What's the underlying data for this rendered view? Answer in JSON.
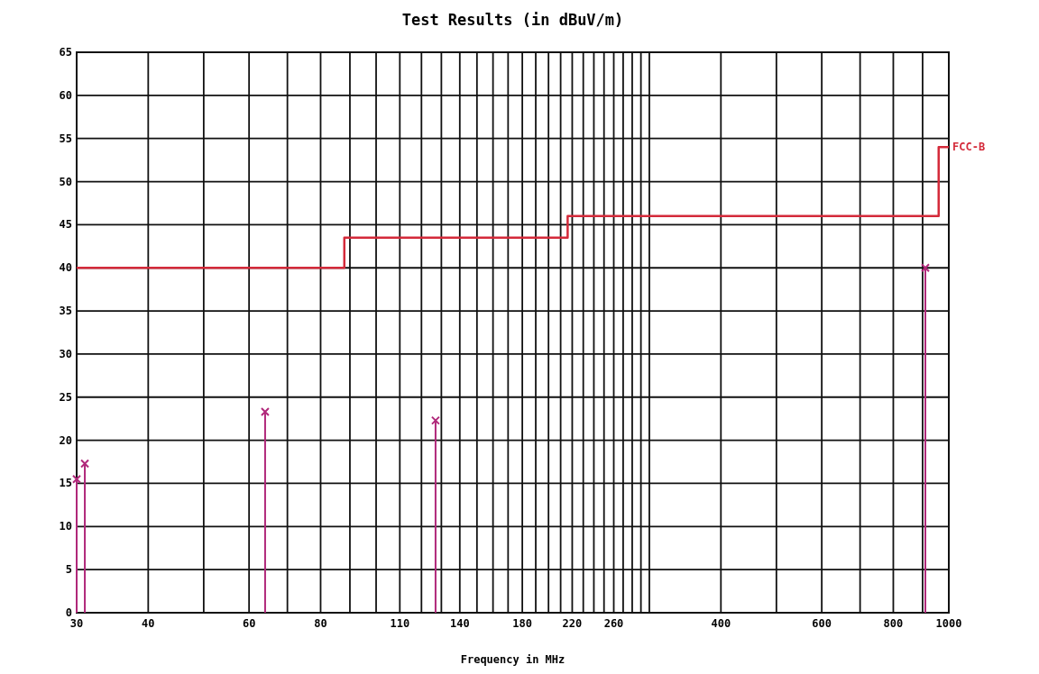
{
  "chart_data": {
    "type": "step",
    "title": "Test Results (in dBuV/m)",
    "xlabel": "Frequency in MHz",
    "log": "x",
    "grid": true,
    "xlim": [
      30,
      1000
    ],
    "ylim": [
      0,
      65
    ],
    "xticks": [
      30,
      40,
      {
        "value": 50,
        "label": null
      },
      60,
      {
        "value": 70,
        "label": null
      },
      80,
      {
        "value": 90,
        "label": null
      },
      {
        "value": 100,
        "label": null
      },
      110,
      {
        "value": 120,
        "label": null
      },
      {
        "value": 130,
        "label": null
      },
      140,
      {
        "value": 150,
        "label": null
      },
      {
        "value": 160,
        "label": null
      },
      {
        "value": 170,
        "label": null
      },
      180,
      {
        "value": 190,
        "label": null
      },
      {
        "value": 200,
        "label": null
      },
      {
        "value": 210,
        "label": null
      },
      220,
      {
        "value": 230,
        "label": null
      },
      {
        "value": 240,
        "label": null
      },
      {
        "value": 250,
        "label": null
      },
      260,
      {
        "value": 270,
        "label": null
      },
      {
        "value": 280,
        "label": null
      },
      {
        "value": 290,
        "label": null
      },
      {
        "value": 300,
        "label": null
      },
      400,
      {
        "value": 500,
        "label": null
      },
      600,
      {
        "value": 700,
        "label": null
      },
      800,
      {
        "value": 900,
        "label": null
      },
      1000
    ],
    "yticks": [
      0,
      5,
      10,
      15,
      20,
      25,
      30,
      35,
      40,
      45,
      50,
      55,
      60,
      65
    ],
    "series": [
      {
        "name": "FCC-B",
        "color": "#d42a3a",
        "x": [
          30,
          88,
          216,
          960,
          1000
        ],
        "values": [
          40,
          43.5,
          46,
          54,
          54
        ],
        "line_style": "solid",
        "marker": "none"
      },
      {
        "type": "lollipop",
        "color": "#b0287a",
        "x": [
          30,
          31,
          64,
          127,
          910
        ],
        "values": [
          15.5,
          17.3,
          23.3,
          22.3,
          40
        ],
        "marker": "cross"
      }
    ]
  }
}
